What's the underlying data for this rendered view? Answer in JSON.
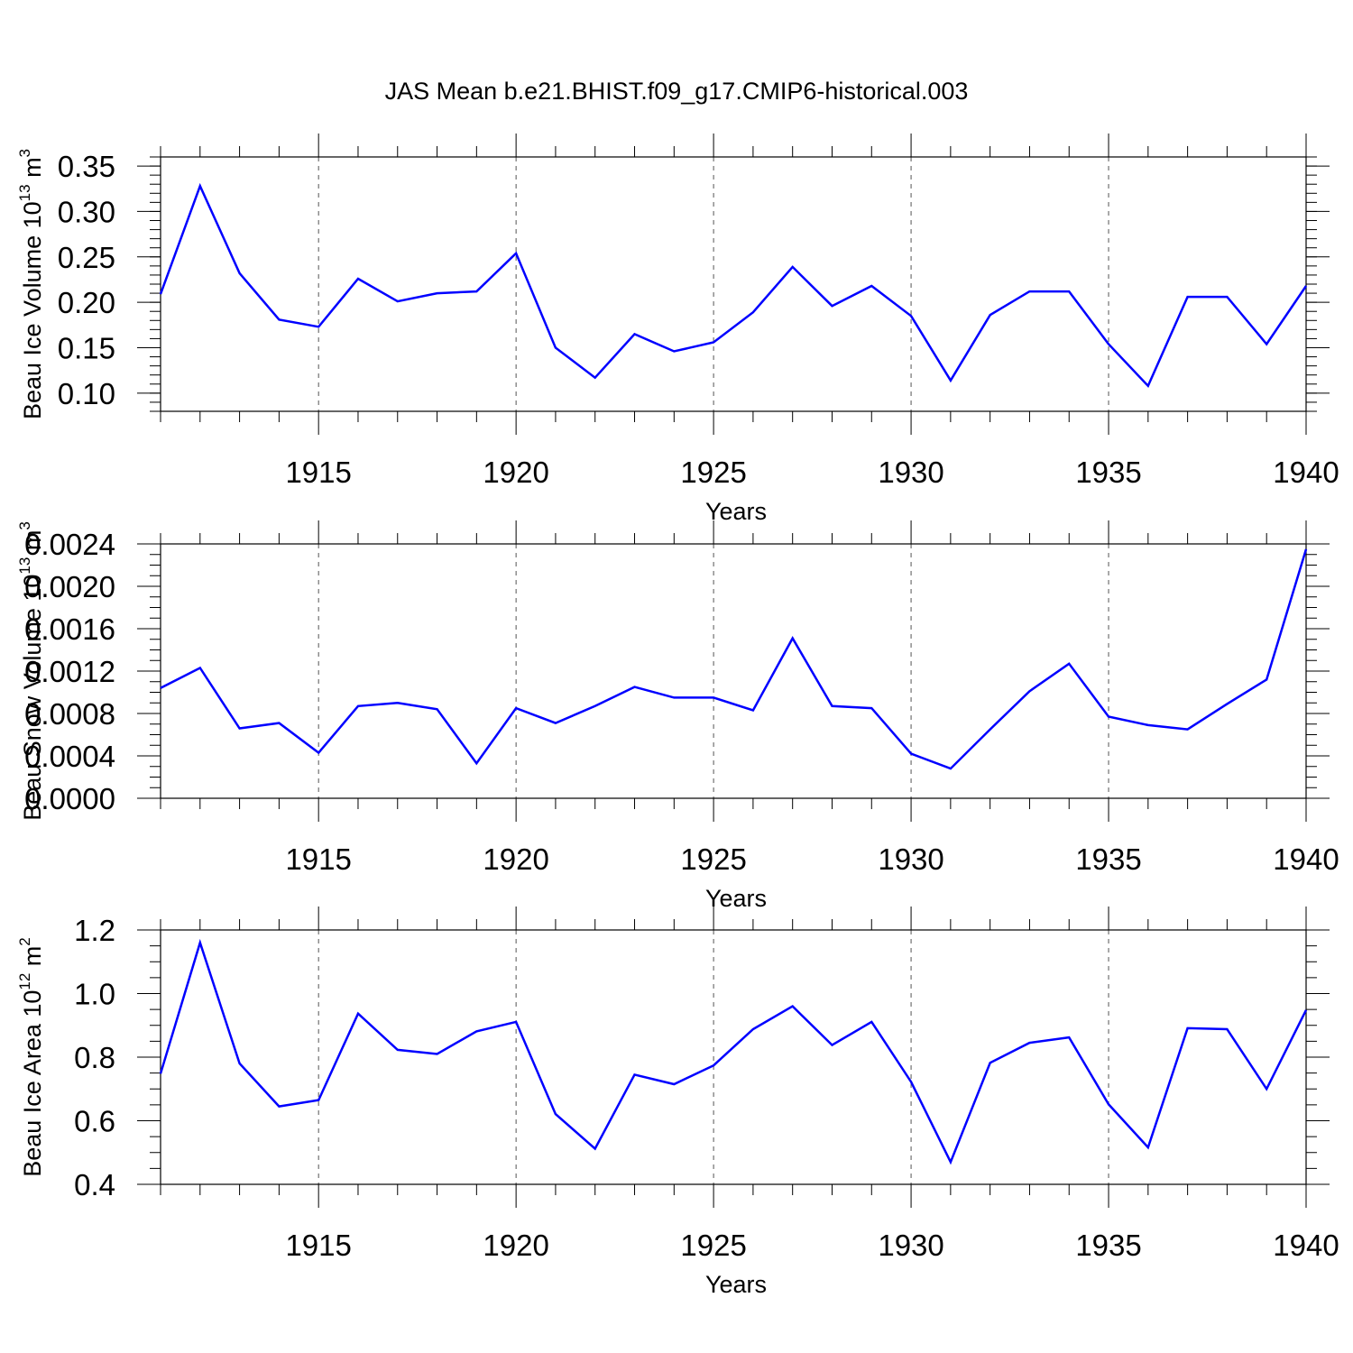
{
  "title": "JAS Mean b.e21.BHIST.f09_g17.CMIP6-historical.003",
  "colors": {
    "series": "#0000ff",
    "axes": "#000000",
    "grid": "#555555",
    "background": "#ffffff"
  },
  "chart_data": [
    {
      "type": "line",
      "xlabel": "Years",
      "ylabel": {
        "text": "Beau Ice Volume 10",
        "exponent": "13",
        "unit": "m",
        "unit_exponent": "3"
      },
      "xlim": [
        1911,
        1940
      ],
      "ylim": [
        0.08,
        0.36
      ],
      "xticks": [
        1915,
        1920,
        1925,
        1930,
        1935,
        1940
      ],
      "xtick_labels": [
        "1915",
        "1920",
        "1925",
        "1930",
        "1935",
        "1940"
      ],
      "yticks": [
        0.1,
        0.15,
        0.2,
        0.25,
        0.3,
        0.35
      ],
      "ytick_labels": [
        "0.10",
        "0.15",
        "0.20",
        "0.25",
        "0.30",
        "0.35"
      ],
      "grid": "vertical dashed at major x ticks",
      "x": [
        1911,
        1912,
        1913,
        1914,
        1915,
        1916,
        1917,
        1918,
        1919,
        1920,
        1921,
        1922,
        1923,
        1924,
        1925,
        1926,
        1927,
        1928,
        1929,
        1930,
        1931,
        1932,
        1933,
        1934,
        1935,
        1936,
        1937,
        1938,
        1939,
        1940
      ],
      "series": [
        {
          "values": [
            0.209,
            0.328,
            0.232,
            0.181,
            0.173,
            0.226,
            0.201,
            0.21,
            0.212,
            0.254,
            0.15,
            0.117,
            0.165,
            0.146,
            0.156,
            0.189,
            0.239,
            0.196,
            0.218,
            0.185,
            0.114,
            0.186,
            0.212,
            0.212,
            0.154,
            0.108,
            0.206,
            0.206,
            0.154,
            0.218
          ]
        }
      ]
    },
    {
      "type": "line",
      "xlabel": "Years",
      "ylabel": {
        "text": "Beau Snow Volume 10",
        "exponent": "13",
        "unit": "m",
        "unit_exponent": "3"
      },
      "xlim": [
        1911,
        1940
      ],
      "ylim": [
        0.0,
        0.0024
      ],
      "xticks": [
        1915,
        1920,
        1925,
        1930,
        1935,
        1940
      ],
      "xtick_labels": [
        "1915",
        "1920",
        "1925",
        "1930",
        "1935",
        "1940"
      ],
      "yticks": [
        0.0,
        0.0004,
        0.0008,
        0.0012,
        0.0016,
        0.002,
        0.0024
      ],
      "ytick_labels": [
        "0.0000",
        "0.0004",
        "0.0008",
        "0.0012",
        "0.0016",
        "0.0020",
        "0.0024"
      ],
      "grid": "vertical dashed at major x ticks",
      "x": [
        1911,
        1912,
        1913,
        1914,
        1915,
        1916,
        1917,
        1918,
        1919,
        1920,
        1921,
        1922,
        1923,
        1924,
        1925,
        1926,
        1927,
        1928,
        1929,
        1930,
        1931,
        1932,
        1933,
        1934,
        1935,
        1936,
        1937,
        1938,
        1939,
        1940
      ],
      "series": [
        {
          "values": [
            0.00104,
            0.00123,
            0.00066,
            0.00071,
            0.00043,
            0.00087,
            0.0009,
            0.00084,
            0.00033,
            0.00085,
            0.00071,
            0.00087,
            0.00105,
            0.00095,
            0.00095,
            0.00083,
            0.00151,
            0.00087,
            0.00085,
            0.00042,
            0.00028,
            0.00065,
            0.00101,
            0.00127,
            0.00077,
            0.00069,
            0.00065,
            0.00089,
            0.00112,
            0.00235
          ]
        }
      ]
    },
    {
      "type": "line",
      "xlabel": "Years",
      "ylabel": {
        "text": "Beau Ice Area 10",
        "exponent": "12",
        "unit": "m",
        "unit_exponent": "2"
      },
      "xlim": [
        1911,
        1940
      ],
      "ylim": [
        0.4,
        1.2
      ],
      "xticks": [
        1915,
        1920,
        1925,
        1930,
        1935,
        1940
      ],
      "xtick_labels": [
        "1915",
        "1920",
        "1925",
        "1930",
        "1935",
        "1940"
      ],
      "yticks": [
        0.4,
        0.6,
        0.8,
        1.0,
        1.2
      ],
      "ytick_labels": [
        "0.4",
        "0.6",
        "0.8",
        "1.0",
        "1.2"
      ],
      "grid": "vertical dashed at major x ticks",
      "x": [
        1911,
        1912,
        1913,
        1914,
        1915,
        1916,
        1917,
        1918,
        1919,
        1920,
        1921,
        1922,
        1923,
        1924,
        1925,
        1926,
        1927,
        1928,
        1929,
        1930,
        1931,
        1932,
        1933,
        1934,
        1935,
        1936,
        1937,
        1938,
        1939,
        1940
      ],
      "series": [
        {
          "values": [
            0.748,
            1.16,
            0.78,
            0.645,
            0.665,
            0.937,
            0.823,
            0.81,
            0.881,
            0.911,
            0.621,
            0.512,
            0.745,
            0.715,
            0.774,
            0.888,
            0.96,
            0.838,
            0.911,
            0.722,
            0.47,
            0.782,
            0.845,
            0.862,
            0.652,
            0.516,
            0.891,
            0.888,
            0.7,
            0.948
          ]
        }
      ]
    }
  ]
}
